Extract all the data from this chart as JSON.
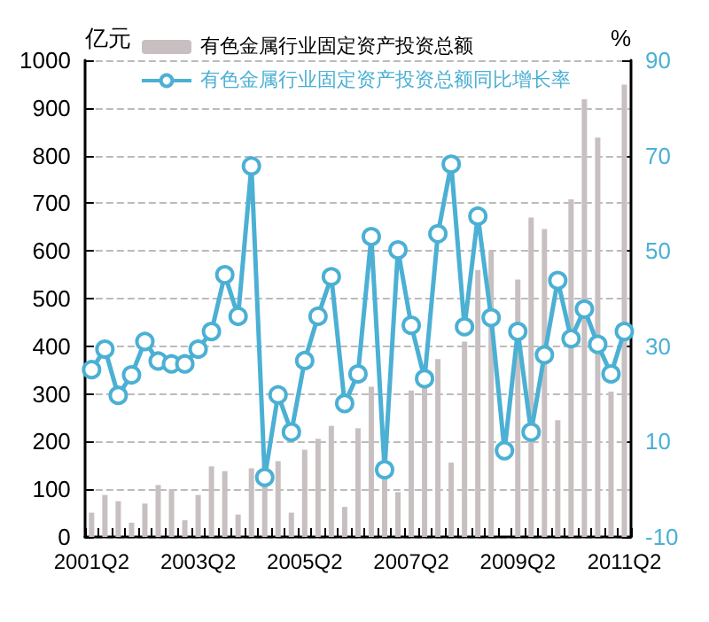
{
  "chart_data": {
    "type": "bar",
    "ylabel": "亿元",
    "y2label": "%",
    "categories": [
      "2001Q2",
      null,
      null,
      null,
      null,
      null,
      null,
      null,
      "2003Q2",
      null,
      null,
      null,
      null,
      null,
      null,
      null,
      "2005Q2",
      null,
      null,
      null,
      null,
      null,
      null,
      null,
      "2007Q2",
      null,
      null,
      null,
      null,
      null,
      null,
      null,
      "2009Q2",
      null,
      null,
      null,
      null,
      null,
      null,
      null,
      "2011Q2"
    ],
    "series": [
      {
        "name": "有色金属行业固定资产投资总额",
        "color": "#c8c0c0",
        "values": [
          51,
          88,
          75,
          30,
          70,
          109,
          100,
          35,
          88,
          148,
          138,
          47,
          144,
          150,
          159,
          51,
          183,
          206,
          233,
          63,
          228,
          315,
          130,
          94,
          307,
          320,
          373,
          156,
          410,
          560,
          600,
          null,
          540,
          670,
          646,
          245,
          708,
          918,
          838,
          305,
          949
        ]
      },
      {
        "name": "有色金属行业固定资产投资总额同比增长率",
        "type": "line",
        "axis": "y2",
        "color": "#4bb0d4",
        "values": [
          25.1,
          29.4,
          19.7,
          24,
          31,
          26.9,
          26.3,
          26.3,
          29.4,
          33.1,
          45,
          36.3,
          67.8,
          2.5,
          19.8,
          12,
          27,
          36.3,
          44.6,
          18,
          24.2,
          53,
          4.1,
          50.2,
          34.4,
          23.2,
          53.6,
          68.2,
          34.1,
          57.3,
          36,
          8.1,
          33.1,
          12,
          28.2,
          43.8,
          31.6,
          37.8,
          30.4,
          24.2,
          33.1
        ]
      }
    ],
    "ylim": [
      0,
      1000
    ],
    "yticks": [
      0,
      100,
      200,
      300,
      400,
      500,
      600,
      700,
      800,
      900,
      1000
    ],
    "y2lim": [
      -10,
      90
    ],
    "y2ticks": [
      -10,
      10,
      30,
      50,
      70,
      90
    ],
    "grid": "y",
    "legend": "top",
    "marker": "circle",
    "line_style": "solid"
  }
}
